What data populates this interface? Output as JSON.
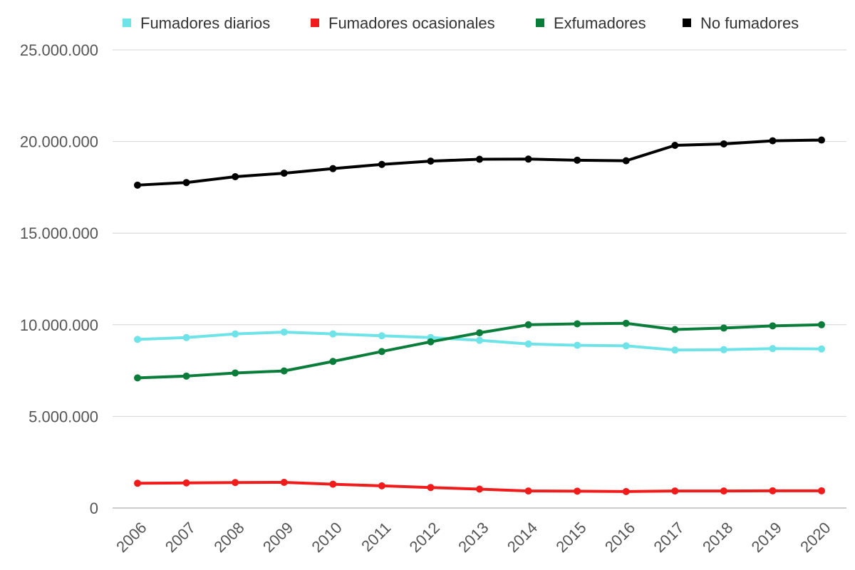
{
  "chart_data": {
    "type": "line",
    "title": "",
    "xlabel": "",
    "ylabel": "",
    "x": [
      "2006",
      "2007",
      "2008",
      "2009",
      "2010",
      "2011",
      "2012",
      "2013",
      "2014",
      "2015",
      "2016",
      "2017",
      "2018",
      "2019",
      "2020"
    ],
    "ylim": [
      0,
      25000000
    ],
    "y_ticks": [
      0,
      5000000,
      10000000,
      15000000,
      20000000,
      25000000
    ],
    "y_tick_labels": [
      "0",
      "5.000.000",
      "10.000.000",
      "15.000.000",
      "20.000.000",
      "25.000.000"
    ],
    "grid": "horizontal",
    "legend_position": "top",
    "series": [
      {
        "name": "Fumadores diarios",
        "color": "#6ee3e8",
        "values": [
          9200000,
          9300000,
          9500000,
          9600000,
          9500000,
          9400000,
          9300000,
          9150000,
          8950000,
          8880000,
          8850000,
          8620000,
          8640000,
          8700000,
          8680000
        ]
      },
      {
        "name": "Fumadores ocasionales",
        "color": "#f01c1c",
        "values": [
          1350000,
          1370000,
          1390000,
          1400000,
          1300000,
          1210000,
          1120000,
          1030000,
          930000,
          920000,
          900000,
          930000,
          930000,
          940000,
          940000
        ]
      },
      {
        "name": "Exfumadores",
        "color": "#0b7d3b",
        "values": [
          7100000,
          7200000,
          7370000,
          7480000,
          8000000,
          8540000,
          9070000,
          9560000,
          10000000,
          10050000,
          10080000,
          9740000,
          9820000,
          9940000,
          10000000
        ]
      },
      {
        "name": "No fumadores",
        "color": "#000000",
        "values": [
          17620000,
          17760000,
          18080000,
          18270000,
          18520000,
          18750000,
          18930000,
          19030000,
          19040000,
          18980000,
          18950000,
          19790000,
          19870000,
          20040000,
          20080000
        ]
      }
    ]
  }
}
